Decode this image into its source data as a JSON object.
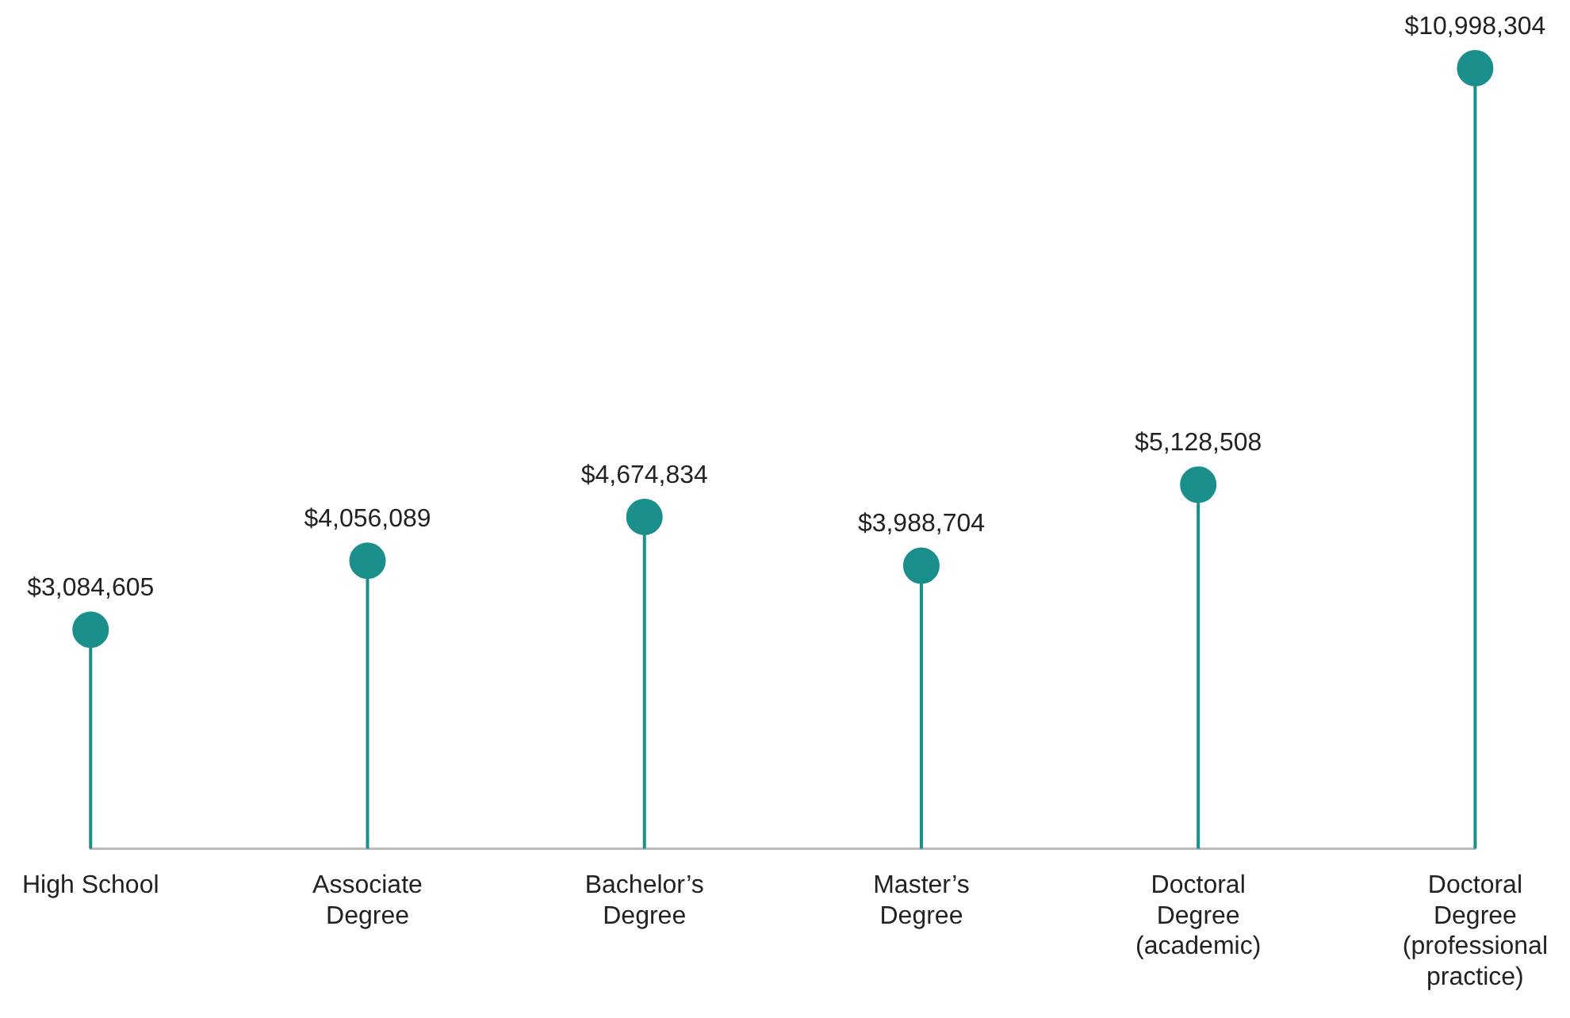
{
  "chart_data": {
    "type": "lollipop",
    "categories": [
      "High School",
      "Associate Degree",
      "Bachelor’s Degree",
      "Master’s Degree",
      "Doctoral Degree (academic)",
      "Doctoral Degree (professional practice)"
    ],
    "values": [
      3084605,
      4056089,
      4674834,
      3988704,
      5128508,
      10998304
    ],
    "value_labels": [
      "$3,084,605",
      "$4,056,089",
      "$4,674,834",
      "$3,988,704",
      "$5,128,508",
      "$10,998,304"
    ],
    "color": "#1b8f8c",
    "marker": "circle"
  }
}
